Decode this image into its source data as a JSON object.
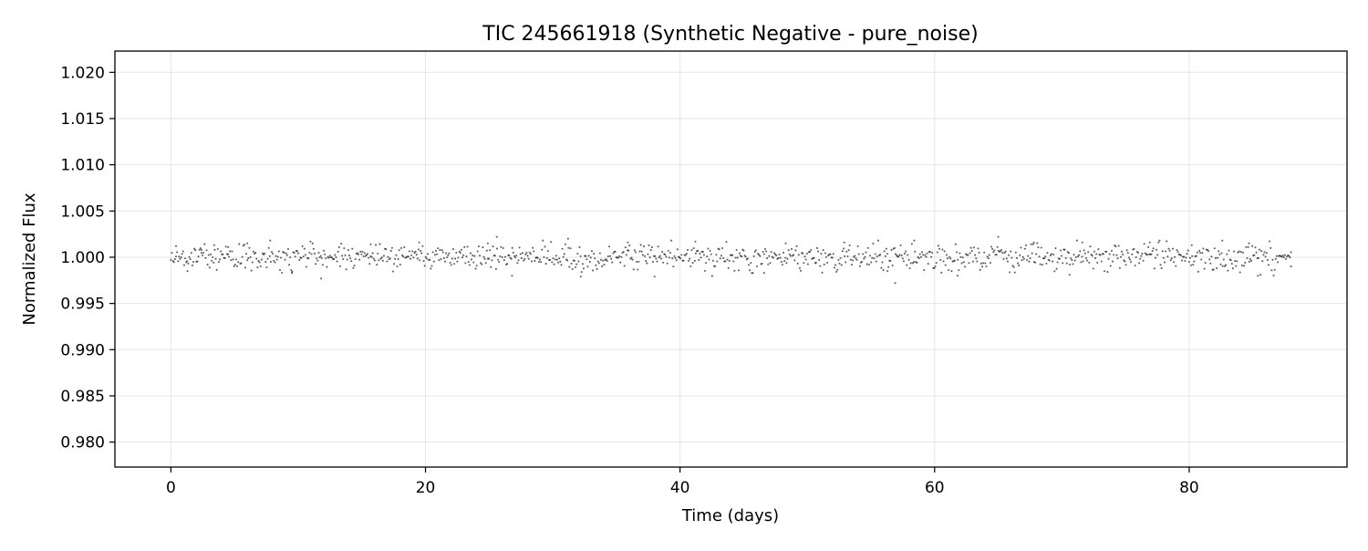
{
  "chart_data": {
    "type": "scatter",
    "title": "TIC 245661918 (Synthetic Negative - pure_noise)",
    "xlabel": "Time (days)",
    "ylabel": "Normalized Flux",
    "xlim": [
      -4.4,
      92.4
    ],
    "ylim": [
      0.9773,
      1.0223
    ],
    "x_ticks": [
      0,
      20,
      40,
      60,
      80
    ],
    "x_tick_labels": [
      "0",
      "20",
      "40",
      "60",
      "80"
    ],
    "y_ticks": [
      0.98,
      0.985,
      0.99,
      0.995,
      1.0,
      1.005,
      1.01,
      1.015,
      1.02
    ],
    "y_tick_labels": [
      "0.980",
      "0.985",
      "0.990",
      "0.995",
      "1.000",
      "1.005",
      "1.010",
      "1.015",
      "1.020"
    ],
    "grid": true,
    "legend": "none",
    "series": [
      {
        "x_start": 0.0,
        "x_end": 88.0,
        "n_points": 1100,
        "baseline": 1.0,
        "noise_sigma": 0.00068,
        "min": 0.9972,
        "max": 1.0022,
        "color": "#000000",
        "points": [
          {
            "x": 0.4,
            "y": 1.0012
          },
          {
            "x": 1.3,
            "y": 0.9985
          },
          {
            "x": 2.4,
            "y": 1.0008
          },
          {
            "x": 3.4,
            "y": 1.0013
          },
          {
            "x": 4.5,
            "y": 1.0011
          },
          {
            "x": 6.0,
            "y": 1.0015
          },
          {
            "x": 7.8,
            "y": 1.0018
          },
          {
            "x": 9.5,
            "y": 0.9983
          },
          {
            "x": 11.8,
            "y": 0.9977
          },
          {
            "x": 15.7,
            "y": 1.0014
          },
          {
            "x": 19.5,
            "y": 1.0016
          },
          {
            "x": 24.9,
            "y": 1.0015
          },
          {
            "x": 25.6,
            "y": 1.0022
          },
          {
            "x": 26.8,
            "y": 0.998
          },
          {
            "x": 31.2,
            "y": 1.002
          },
          {
            "x": 32.2,
            "y": 0.9979
          },
          {
            "x": 35.9,
            "y": 1.0016
          },
          {
            "x": 38.0,
            "y": 0.9979
          },
          {
            "x": 41.2,
            "y": 1.0017
          },
          {
            "x": 46.6,
            "y": 0.9983
          },
          {
            "x": 48.3,
            "y": 1.0015
          },
          {
            "x": 52.9,
            "y": 1.0016
          },
          {
            "x": 56.3,
            "y": 0.9985
          },
          {
            "x": 56.9,
            "y": 0.9972
          },
          {
            "x": 58.4,
            "y": 1.0018
          },
          {
            "x": 61.8,
            "y": 0.998
          },
          {
            "x": 65.0,
            "y": 1.0022
          },
          {
            "x": 67.8,
            "y": 1.0016
          },
          {
            "x": 70.6,
            "y": 0.9981
          },
          {
            "x": 71.6,
            "y": 1.0016
          },
          {
            "x": 76.9,
            "y": 1.0016
          },
          {
            "x": 80.2,
            "y": 1.0013
          },
          {
            "x": 82.6,
            "y": 1.0018
          },
          {
            "x": 84.7,
            "y": 1.0015
          },
          {
            "x": 85.4,
            "y": 0.998
          },
          {
            "x": 88.0,
            "y": 0.999
          }
        ]
      }
    ]
  }
}
